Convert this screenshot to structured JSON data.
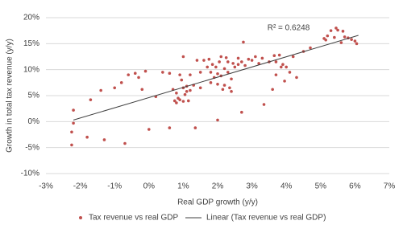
{
  "chart_data": {
    "type": "scatter",
    "x_label": "Real GDP growth (y/y)",
    "y_label": "Growth in total tax revenue (y/y)",
    "annotation": "R² = 0.6248",
    "xlim": [
      -3,
      7
    ],
    "xticks": [
      {
        "value": -3,
        "label": "-3%"
      },
      {
        "value": -2,
        "label": "-2%"
      },
      {
        "value": -1,
        "label": "-1%"
      },
      {
        "value": 0,
        "label": "0%"
      },
      {
        "value": 1,
        "label": "1%"
      },
      {
        "value": 2,
        "label": "2%"
      },
      {
        "value": 3,
        "label": "3%"
      },
      {
        "value": 4,
        "label": "4%"
      },
      {
        "value": 5,
        "label": "5%"
      },
      {
        "value": 6,
        "label": "6%"
      },
      {
        "value": 7,
        "label": "7%"
      }
    ],
    "ylim": [
      -10,
      20
    ],
    "yticks": [
      {
        "value": -10,
        "label": "-10%"
      },
      {
        "value": -5,
        "label": "-5%"
      },
      {
        "value": 0,
        "label": "0%"
      },
      {
        "value": 5,
        "label": "5%"
      },
      {
        "value": 10,
        "label": "10%"
      },
      {
        "value": 15,
        "label": "15%"
      },
      {
        "value": 20,
        "label": "20%"
      }
    ],
    "grid": true,
    "legend": "bottom",
    "series": [
      {
        "name": "Tax revenue vs real GDP",
        "color": "#c0504d",
        "x": [
          -2.25,
          -2.25,
          -2.2,
          -2.2,
          -1.8,
          -1.7,
          -1.3,
          -1.4,
          -1.0,
          -0.8,
          -0.7,
          -0.6,
          -0.4,
          -0.3,
          -0.2,
          -0.1,
          0.0,
          0.2,
          0.4,
          0.6,
          0.6,
          0.7,
          0.75,
          0.8,
          0.8,
          0.85,
          0.9,
          0.9,
          0.95,
          1.0,
          1.0,
          1.0,
          1.05,
          1.1,
          1.1,
          1.15,
          1.2,
          1.2,
          1.3,
          1.35,
          1.4,
          1.5,
          1.5,
          1.6,
          1.7,
          1.75,
          1.8,
          1.8,
          1.85,
          1.9,
          1.95,
          2.0,
          2.0,
          2.0,
          2.05,
          2.1,
          2.1,
          2.15,
          2.2,
          2.2,
          2.25,
          2.3,
          2.3,
          2.35,
          2.4,
          2.4,
          2.45,
          2.5,
          2.6,
          2.6,
          2.7,
          2.7,
          2.75,
          2.8,
          2.9,
          3.0,
          3.1,
          3.2,
          3.3,
          3.35,
          3.5,
          3.6,
          3.65,
          3.7,
          3.7,
          3.8,
          3.85,
          3.9,
          3.95,
          4.0,
          4.1,
          4.2,
          4.3,
          4.5,
          4.7,
          5.1,
          5.15,
          5.2,
          5.3,
          5.4,
          5.45,
          5.5,
          5.6,
          5.65,
          5.7,
          5.8,
          5.9,
          6.0,
          6.05
        ],
        "values": [
          -4.5,
          -2,
          -0.3,
          2.2,
          -3,
          4.2,
          -3.5,
          6,
          6.5,
          7.5,
          -4.2,
          9,
          9.3,
          8.5,
          6.2,
          9.7,
          -1.5,
          4.8,
          9.5,
          -1.2,
          9.3,
          6.2,
          4,
          3.6,
          5.5,
          4.5,
          4.2,
          9,
          8,
          3.9,
          12.5,
          6.5,
          5.2,
          5.8,
          6.8,
          4,
          6,
          9,
          7,
          -1.2,
          11.8,
          6.5,
          9.5,
          11.8,
          10.5,
          12,
          9.5,
          7.5,
          11,
          8.5,
          10.5,
          0.3,
          7.2,
          9.2,
          11.5,
          12.5,
          8.8,
          6.2,
          10.2,
          7,
          12.3,
          11.5,
          9.5,
          6.5,
          5.8,
          8.2,
          11.2,
          10.5,
          12.2,
          11,
          1.8,
          11.5,
          15.3,
          10.8,
          12,
          11.8,
          12.5,
          11.2,
          12.2,
          3.3,
          11.5,
          6.2,
          12.7,
          9,
          11.5,
          12.8,
          10.5,
          11,
          7.8,
          10.5,
          9.5,
          12.5,
          8.5,
          13.5,
          14.2,
          16,
          15.7,
          16.5,
          17.5,
          16.2,
          18,
          17.6,
          15.2,
          17.4,
          16.3,
          16.1,
          15.8,
          15.5,
          15
        ]
      },
      {
        "name": "Linear (Tax revenue vs real GDP)",
        "color": "#404040",
        "x": [
          -2.2,
          6.1
        ],
        "values": [
          0.3,
          16.6
        ]
      }
    ]
  }
}
